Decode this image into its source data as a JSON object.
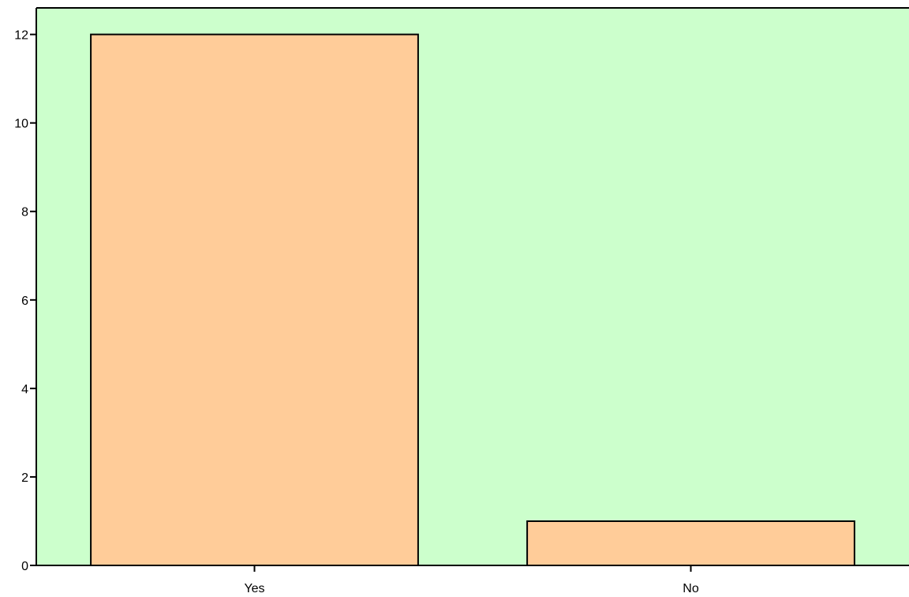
{
  "chart_data": {
    "type": "bar",
    "categories": [
      "Yes",
      "No"
    ],
    "values": [
      12,
      1
    ],
    "ylim": [
      0,
      12.6
    ],
    "yticks": [
      0,
      2,
      4,
      6,
      8,
      10,
      12
    ],
    "title": "",
    "xlabel": "",
    "ylabel": "",
    "grid": false,
    "colors": {
      "plot_background": "#ccffcc",
      "bar_fill": "#ffcc99",
      "bar_stroke": "#000000",
      "axis": "#000000"
    }
  }
}
